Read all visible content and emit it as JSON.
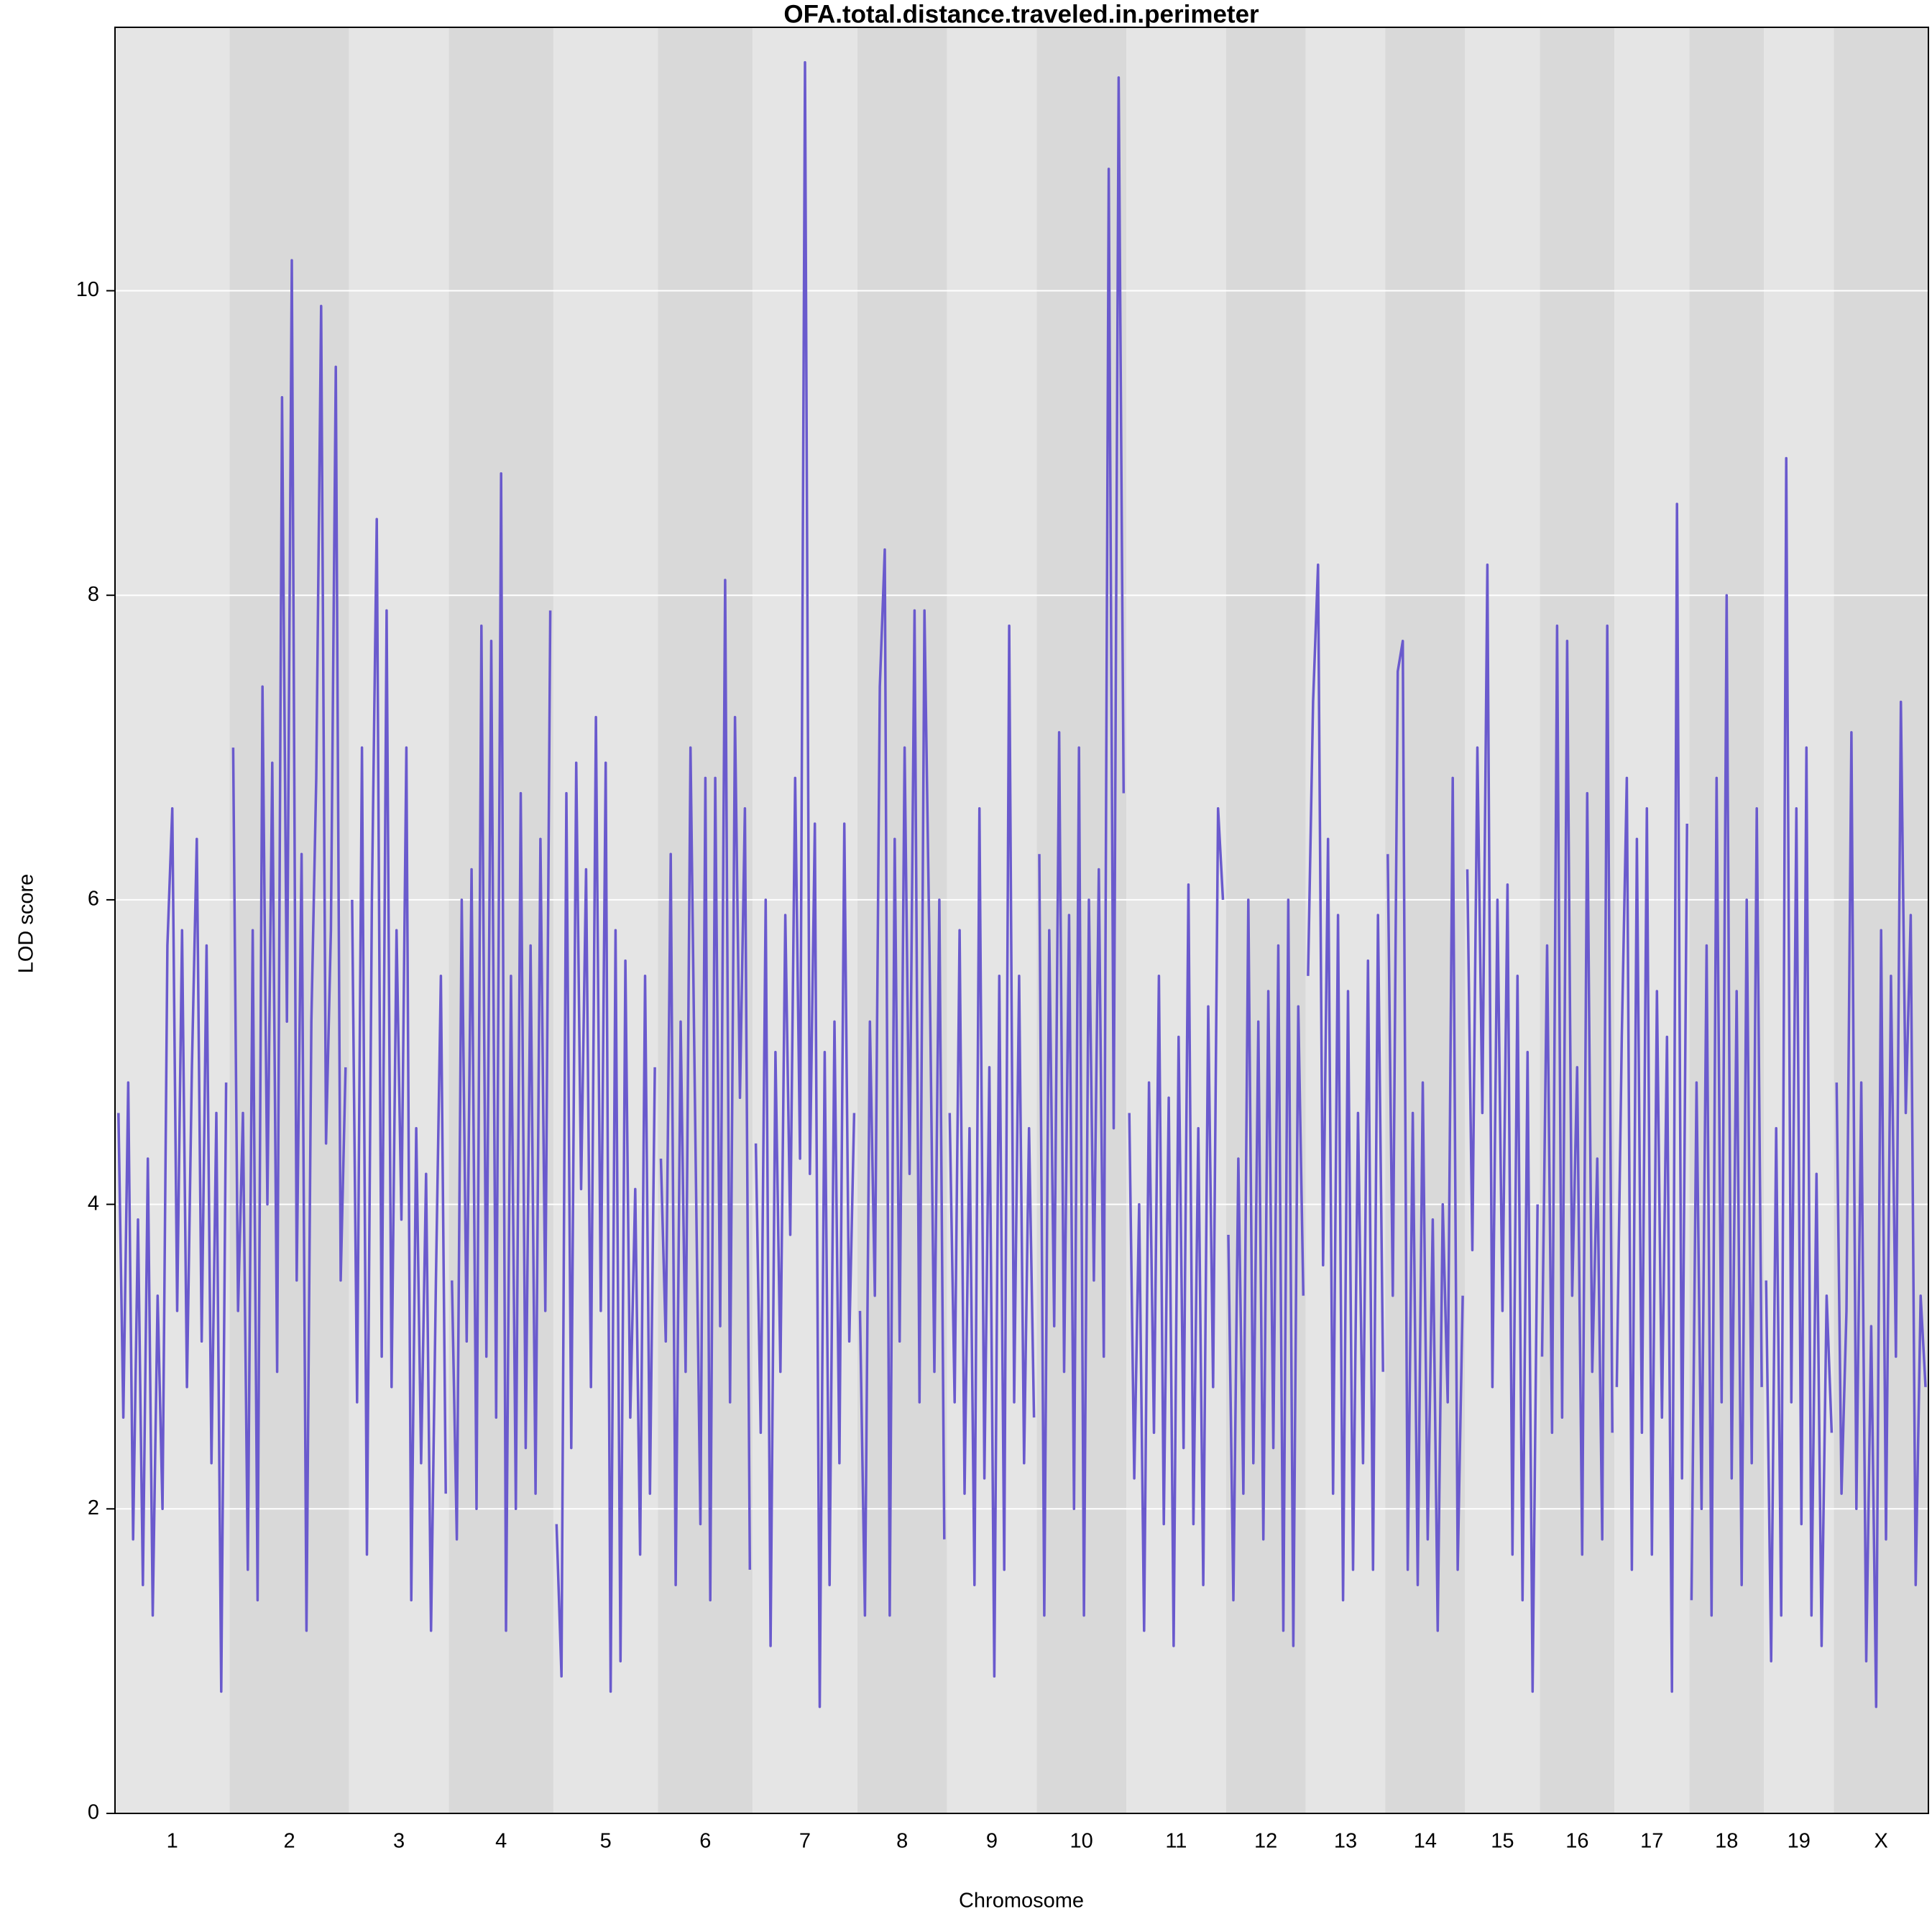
{
  "chart_data": {
    "type": "line",
    "title": "OFA.total.distance.traveled.in.perimeter",
    "x_label": "Chromosome",
    "y_label": "LOD score",
    "color": "#6a5acd",
    "band_colors": [
      "#e5e5e5",
      "#d9d9d9"
    ],
    "grid": true,
    "ylim": [
      0,
      11.73
    ],
    "yticks": [
      0,
      2,
      4,
      6,
      8,
      10
    ],
    "categories": [
      "1",
      "2",
      "3",
      "4",
      "5",
      "6",
      "7",
      "8",
      "9",
      "10",
      "11",
      "12",
      "13",
      "14",
      "15",
      "16",
      "17",
      "18",
      "19",
      "X"
    ],
    "values": [
      [
        4.6,
        2.6,
        4.8,
        1.8,
        3.9,
        1.5,
        4.3,
        1.3,
        3.4,
        2.0,
        5.7,
        6.6,
        3.3,
        5.8,
        2.8,
        4.9,
        6.4,
        3.1,
        5.7,
        2.3,
        4.6,
        0.8,
        4.8
      ],
      [
        7.0,
        3.3,
        4.6,
        1.6,
        5.8,
        1.4,
        7.4,
        4.0,
        6.9,
        2.9,
        9.3,
        5.2,
        10.2,
        3.5,
        6.3,
        1.2,
        5.2,
        6.8,
        9.9,
        4.4,
        5.8,
        9.5,
        3.5,
        4.9
      ],
      [
        6.0,
        2.7,
        7.0,
        1.7,
        6.0,
        8.5,
        3.0,
        7.9,
        2.8,
        5.8,
        3.9,
        7.0,
        1.4,
        4.5,
        2.3,
        4.2,
        1.2,
        3.5,
        5.5,
        2.1
      ],
      [
        3.5,
        1.8,
        6.0,
        3.1,
        6.2,
        2.0,
        7.8,
        3.0,
        7.7,
        2.6,
        8.8,
        1.2,
        5.5,
        2.0,
        6.7,
        2.4,
        5.7,
        2.1,
        6.4,
        3.3,
        7.9
      ],
      [
        1.9,
        0.9,
        6.7,
        2.4,
        6.9,
        4.1,
        6.2,
        2.8,
        7.2,
        3.3,
        6.9,
        0.8,
        5.8,
        1.0,
        5.6,
        2.6,
        4.1,
        1.7,
        5.5,
        2.1,
        4.9
      ],
      [
        4.3,
        3.1,
        6.3,
        1.5,
        5.2,
        2.9,
        7.0,
        4.4,
        1.9,
        6.8,
        1.4,
        6.8,
        3.2,
        8.1,
        2.7,
        7.2,
        4.7,
        6.6,
        1.6
      ],
      [
        4.4,
        2.5,
        6.0,
        1.1,
        5.0,
        2.9,
        5.9,
        3.8,
        6.8,
        4.3,
        11.5,
        4.2,
        6.5,
        0.7,
        5.0,
        1.5,
        5.2,
        2.3,
        6.5,
        3.1,
        4.6
      ],
      [
        3.3,
        1.3,
        5.2,
        3.4,
        7.4,
        8.3,
        1.3,
        6.4,
        3.1,
        7.0,
        4.2,
        7.9,
        2.7,
        7.9,
        5.7,
        2.9,
        6.0,
        1.8
      ],
      [
        4.6,
        2.7,
        5.8,
        2.1,
        4.5,
        1.5,
        6.6,
        2.2,
        4.9,
        0.9,
        5.5,
        1.6,
        7.8,
        2.7,
        5.5,
        2.3,
        4.5,
        2.6
      ],
      [
        6.3,
        1.3,
        5.8,
        3.2,
        7.1,
        2.9,
        5.9,
        2.0,
        7.0,
        1.3,
        6.0,
        3.5,
        6.2,
        3.0,
        10.8,
        4.5,
        11.4,
        6.7
      ],
      [
        4.6,
        2.2,
        4.0,
        1.2,
        4.8,
        2.5,
        5.5,
        1.9,
        4.7,
        1.1,
        5.1,
        2.4,
        6.1,
        1.9,
        4.5,
        1.5,
        5.3,
        2.8,
        6.6,
        6.0
      ],
      [
        3.8,
        1.4,
        4.3,
        2.1,
        6.0,
        2.3,
        5.2,
        1.8,
        5.4,
        2.4,
        5.7,
        1.2,
        6.0,
        1.1,
        5.3,
        3.4
      ],
      [
        5.5,
        7.3,
        8.2,
        3.6,
        6.4,
        2.1,
        5.9,
        1.4,
        5.4,
        1.6,
        4.6,
        2.3,
        5.6,
        1.6,
        5.9,
        2.9
      ],
      [
        6.3,
        3.4,
        7.5,
        7.7,
        1.6,
        4.6,
        1.5,
        4.8,
        1.8,
        3.9,
        1.2,
        4.0,
        2.7,
        6.8,
        1.6,
        3.4
      ],
      [
        6.2,
        3.7,
        7.0,
        4.6,
        8.2,
        2.8,
        6.0,
        3.3,
        6.1,
        1.7,
        5.5,
        1.4,
        5.0,
        0.8,
        4.0
      ],
      [
        3.0,
        5.7,
        2.5,
        7.8,
        2.6,
        7.7,
        3.4,
        4.9,
        1.7,
        6.7,
        2.9,
        4.3,
        1.8,
        7.8,
        2.5
      ],
      [
        2.8,
        5.1,
        6.8,
        1.6,
        6.4,
        2.5,
        6.6,
        1.7,
        5.4,
        2.6,
        5.1,
        0.8,
        8.6,
        2.2,
        6.5
      ],
      [
        1.4,
        4.8,
        2.0,
        5.7,
        1.3,
        6.8,
        2.7,
        8.0,
        2.2,
        5.4,
        1.5,
        6.0,
        2.3,
        6.6,
        2.8
      ],
      [
        3.5,
        1.0,
        4.5,
        1.3,
        8.9,
        2.7,
        6.6,
        1.9,
        7.0,
        1.3,
        4.2,
        1.1,
        3.4,
        2.5
      ],
      [
        4.8,
        2.1,
        3.3,
        7.1,
        2.0,
        4.8,
        1.0,
        3.2,
        0.7,
        5.8,
        1.8,
        5.5,
        3.0,
        7.3,
        4.6,
        5.9,
        1.5,
        3.4,
        2.8
      ]
    ]
  }
}
